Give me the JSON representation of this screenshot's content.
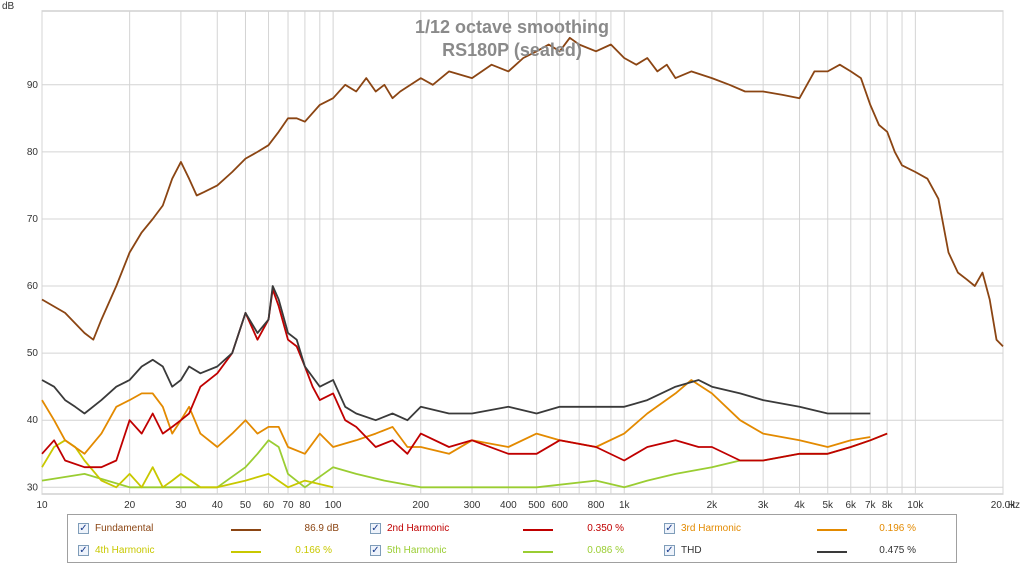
{
  "chart_data": {
    "type": "line",
    "title": "1/12 octave smoothing",
    "subtitle": "RS180P  (sealed)",
    "ylabel": "dB",
    "xlabel_unit": "Hz",
    "x_scale": "log",
    "xlim": [
      10,
      20000
    ],
    "ylim": [
      29,
      101
    ],
    "y_ticks": [
      30,
      40,
      50,
      60,
      70,
      80,
      90
    ],
    "x_ticks": [
      {
        "v": 10,
        "label": "10"
      },
      {
        "v": 20,
        "label": "20"
      },
      {
        "v": 30,
        "label": "30"
      },
      {
        "v": 40,
        "label": "40"
      },
      {
        "v": 50,
        "label": "50"
      },
      {
        "v": 60,
        "label": "60"
      },
      {
        "v": 70,
        "label": "70"
      },
      {
        "v": 80,
        "label": "80"
      },
      {
        "v": 100,
        "label": "100"
      },
      {
        "v": 200,
        "label": "200"
      },
      {
        "v": 300,
        "label": "300"
      },
      {
        "v": 400,
        "label": "400"
      },
      {
        "v": 500,
        "label": "500"
      },
      {
        "v": 600,
        "label": "600"
      },
      {
        "v": 800,
        "label": "800"
      },
      {
        "v": 1000,
        "label": "1k"
      },
      {
        "v": 2000,
        "label": "2k"
      },
      {
        "v": 3000,
        "label": "3k"
      },
      {
        "v": 4000,
        "label": "4k"
      },
      {
        "v": 5000,
        "label": "5k"
      },
      {
        "v": 6000,
        "label": "6k"
      },
      {
        "v": 7000,
        "label": "7k"
      },
      {
        "v": 8000,
        "label": "8k"
      },
      {
        "v": 10000,
        "label": "10k"
      },
      {
        "v": 20000,
        "label": "20.0k"
      }
    ],
    "grid": true,
    "legend_position": "bottom",
    "series": [
      {
        "name": "Fundamental",
        "color": "#8b4513",
        "value_label": "86.9 dB",
        "points": [
          [
            10,
            58
          ],
          [
            12,
            56
          ],
          [
            14,
            53
          ],
          [
            15,
            52
          ],
          [
            16,
            55
          ],
          [
            18,
            60
          ],
          [
            20,
            65
          ],
          [
            22,
            68
          ],
          [
            24,
            70
          ],
          [
            26,
            72
          ],
          [
            28,
            76
          ],
          [
            30,
            78.5
          ],
          [
            32,
            76
          ],
          [
            34,
            73.5
          ],
          [
            36,
            74
          ],
          [
            40,
            75
          ],
          [
            45,
            77
          ],
          [
            50,
            79
          ],
          [
            55,
            80
          ],
          [
            60,
            81
          ],
          [
            65,
            83
          ],
          [
            70,
            85
          ],
          [
            75,
            85
          ],
          [
            80,
            84.5
          ],
          [
            90,
            87
          ],
          [
            100,
            88
          ],
          [
            110,
            90
          ],
          [
            120,
            89
          ],
          [
            130,
            91
          ],
          [
            140,
            89
          ],
          [
            150,
            90
          ],
          [
            160,
            88
          ],
          [
            170,
            89
          ],
          [
            200,
            91
          ],
          [
            220,
            90
          ],
          [
            250,
            92
          ],
          [
            300,
            91
          ],
          [
            350,
            93
          ],
          [
            400,
            92
          ],
          [
            450,
            94
          ],
          [
            500,
            95
          ],
          [
            550,
            96
          ],
          [
            600,
            95
          ],
          [
            650,
            97
          ],
          [
            700,
            96
          ],
          [
            800,
            95
          ],
          [
            900,
            96
          ],
          [
            1000,
            94
          ],
          [
            1100,
            93
          ],
          [
            1200,
            94
          ],
          [
            1300,
            92
          ],
          [
            1400,
            93
          ],
          [
            1500,
            91
          ],
          [
            1700,
            92
          ],
          [
            2000,
            91
          ],
          [
            2300,
            90
          ],
          [
            2600,
            89
          ],
          [
            3000,
            89
          ],
          [
            3500,
            88.5
          ],
          [
            4000,
            88
          ],
          [
            4500,
            92
          ],
          [
            5000,
            92
          ],
          [
            5500,
            93
          ],
          [
            6000,
            92
          ],
          [
            6500,
            91
          ],
          [
            7000,
            87
          ],
          [
            7500,
            84
          ],
          [
            8000,
            83
          ],
          [
            8500,
            80
          ],
          [
            9000,
            78
          ],
          [
            10000,
            77
          ],
          [
            11000,
            76
          ],
          [
            12000,
            73
          ],
          [
            13000,
            65
          ],
          [
            14000,
            62
          ],
          [
            15000,
            61
          ],
          [
            16000,
            60
          ],
          [
            17000,
            62
          ],
          [
            18000,
            58
          ],
          [
            19000,
            52
          ],
          [
            20000,
            51
          ]
        ]
      },
      {
        "name": "2nd Harmonic",
        "color": "#c00000",
        "value_label": "0.350 %",
        "points": [
          [
            10,
            35
          ],
          [
            11,
            37
          ],
          [
            12,
            34
          ],
          [
            14,
            33
          ],
          [
            16,
            33
          ],
          [
            18,
            34
          ],
          [
            20,
            40
          ],
          [
            22,
            38
          ],
          [
            24,
            41
          ],
          [
            26,
            38
          ],
          [
            28,
            39
          ],
          [
            30,
            40
          ],
          [
            32,
            41
          ],
          [
            35,
            45
          ],
          [
            40,
            47
          ],
          [
            45,
            50
          ],
          [
            50,
            56
          ],
          [
            55,
            52
          ],
          [
            60,
            55
          ],
          [
            62,
            59.5
          ],
          [
            65,
            57
          ],
          [
            70,
            52
          ],
          [
            75,
            51
          ],
          [
            80,
            48
          ],
          [
            85,
            45
          ],
          [
            90,
            43
          ],
          [
            100,
            44
          ],
          [
            110,
            40
          ],
          [
            120,
            39
          ],
          [
            140,
            36
          ],
          [
            160,
            37
          ],
          [
            180,
            35
          ],
          [
            200,
            38
          ],
          [
            250,
            36
          ],
          [
            300,
            37
          ],
          [
            400,
            35
          ],
          [
            500,
            35
          ],
          [
            600,
            37
          ],
          [
            800,
            36
          ],
          [
            1000,
            34
          ],
          [
            1200,
            36
          ],
          [
            1500,
            37
          ],
          [
            1800,
            36
          ],
          [
            2000,
            36
          ],
          [
            2500,
            34
          ],
          [
            3000,
            34
          ],
          [
            4000,
            35
          ],
          [
            5000,
            35
          ],
          [
            6000,
            36
          ],
          [
            7000,
            37
          ],
          [
            8000,
            38
          ]
        ]
      },
      {
        "name": "3rd Harmonic",
        "color": "#e38a00",
        "value_label": "0.196 %",
        "points": [
          [
            10,
            43
          ],
          [
            11,
            40
          ],
          [
            12,
            37
          ],
          [
            14,
            35
          ],
          [
            16,
            38
          ],
          [
            18,
            42
          ],
          [
            20,
            43
          ],
          [
            22,
            44
          ],
          [
            24,
            44
          ],
          [
            26,
            42
          ],
          [
            28,
            38
          ],
          [
            30,
            40
          ],
          [
            32,
            42
          ],
          [
            35,
            38
          ],
          [
            40,
            36
          ],
          [
            45,
            38
          ],
          [
            50,
            40
          ],
          [
            55,
            38
          ],
          [
            60,
            39
          ],
          [
            65,
            39
          ],
          [
            70,
            36
          ],
          [
            80,
            35
          ],
          [
            90,
            38
          ],
          [
            100,
            36
          ],
          [
            120,
            37
          ],
          [
            140,
            38
          ],
          [
            160,
            39
          ],
          [
            180,
            36
          ],
          [
            200,
            36
          ],
          [
            250,
            35
          ],
          [
            300,
            37
          ],
          [
            400,
            36
          ],
          [
            500,
            38
          ],
          [
            600,
            37
          ],
          [
            800,
            36
          ],
          [
            1000,
            38
          ],
          [
            1200,
            41
          ],
          [
            1500,
            44
          ],
          [
            1700,
            46
          ],
          [
            2000,
            44
          ],
          [
            2500,
            40
          ],
          [
            3000,
            38
          ],
          [
            4000,
            37
          ],
          [
            5000,
            36
          ],
          [
            6000,
            37
          ],
          [
            7000,
            37.5
          ]
        ]
      },
      {
        "name": "4th Harmonic",
        "color": "#c8c800",
        "value_label": "0.166 %",
        "points": [
          [
            10,
            33
          ],
          [
            11,
            36
          ],
          [
            12,
            37
          ],
          [
            13,
            36
          ],
          [
            14,
            34
          ],
          [
            16,
            31
          ],
          [
            18,
            30
          ],
          [
            20,
            32
          ],
          [
            22,
            30
          ],
          [
            24,
            33
          ],
          [
            26,
            30
          ],
          [
            28,
            31
          ],
          [
            30,
            32
          ],
          [
            35,
            30
          ],
          [
            40,
            30
          ],
          [
            50,
            31
          ],
          [
            60,
            32
          ],
          [
            70,
            30
          ],
          [
            80,
            31
          ],
          [
            100,
            30
          ]
        ]
      },
      {
        "name": "5th Harmonic",
        "color": "#9acd32",
        "value_label": "0.086 %",
        "points": [
          [
            10,
            31
          ],
          [
            14,
            32
          ],
          [
            20,
            30
          ],
          [
            30,
            30
          ],
          [
            40,
            30
          ],
          [
            50,
            33
          ],
          [
            55,
            35
          ],
          [
            60,
            37
          ],
          [
            65,
            36
          ],
          [
            70,
            32
          ],
          [
            80,
            30
          ],
          [
            100,
            33
          ],
          [
            120,
            32
          ],
          [
            150,
            31
          ],
          [
            200,
            30
          ],
          [
            300,
            30
          ],
          [
            500,
            30
          ],
          [
            800,
            31
          ],
          [
            1000,
            30
          ],
          [
            1200,
            31
          ],
          [
            1500,
            32
          ],
          [
            2000,
            33
          ],
          [
            2500,
            34
          ],
          [
            3000,
            34
          ],
          [
            4000,
            35
          ],
          [
            5000,
            35
          ],
          [
            6000,
            36
          ],
          [
            7000,
            37
          ],
          [
            8000,
            38
          ]
        ]
      },
      {
        "name": "THD",
        "color": "#3a3a3a",
        "value_label": "0.475 %",
        "points": [
          [
            10,
            46
          ],
          [
            11,
            45
          ],
          [
            12,
            43
          ],
          [
            13,
            42
          ],
          [
            14,
            41
          ],
          [
            16,
            43
          ],
          [
            18,
            45
          ],
          [
            20,
            46
          ],
          [
            22,
            48
          ],
          [
            24,
            49
          ],
          [
            26,
            48
          ],
          [
            28,
            45
          ],
          [
            30,
            46
          ],
          [
            32,
            48
          ],
          [
            35,
            47
          ],
          [
            40,
            48
          ],
          [
            45,
            50
          ],
          [
            50,
            56
          ],
          [
            55,
            53
          ],
          [
            60,
            55
          ],
          [
            62,
            60
          ],
          [
            65,
            58
          ],
          [
            70,
            53
          ],
          [
            75,
            52
          ],
          [
            80,
            48
          ],
          [
            90,
            45
          ],
          [
            100,
            46
          ],
          [
            110,
            42
          ],
          [
            120,
            41
          ],
          [
            140,
            40
          ],
          [
            160,
            41
          ],
          [
            180,
            40
          ],
          [
            200,
            42
          ],
          [
            250,
            41
          ],
          [
            300,
            41
          ],
          [
            400,
            42
          ],
          [
            500,
            41
          ],
          [
            600,
            42
          ],
          [
            800,
            42
          ],
          [
            1000,
            42
          ],
          [
            1200,
            43
          ],
          [
            1500,
            45
          ],
          [
            1800,
            46
          ],
          [
            2000,
            45
          ],
          [
            2500,
            44
          ],
          [
            3000,
            43
          ],
          [
            4000,
            42
          ],
          [
            5000,
            41
          ],
          [
            6000,
            41
          ],
          [
            7000,
            41
          ]
        ]
      }
    ]
  },
  "legend": {
    "items": [
      {
        "label": "Fundamental",
        "value": "86.9 dB",
        "color": "#8b4513",
        "checked": "✓"
      },
      {
        "label": "2nd Harmonic",
        "value": "0.350 %",
        "color": "#c00000",
        "checked": "✓"
      },
      {
        "label": "3rd Harmonic",
        "value": "0.196 %",
        "color": "#e38a00",
        "checked": "✓"
      },
      {
        "label": "4th Harmonic",
        "value": "0.166 %",
        "color": "#c8c800",
        "checked": "✓"
      },
      {
        "label": "5th Harmonic",
        "value": "0.086 %",
        "color": "#9acd32",
        "checked": "✓"
      },
      {
        "label": "THD",
        "value": "0.475 %",
        "color": "#3a3a3a",
        "checked": "✓"
      }
    ]
  }
}
